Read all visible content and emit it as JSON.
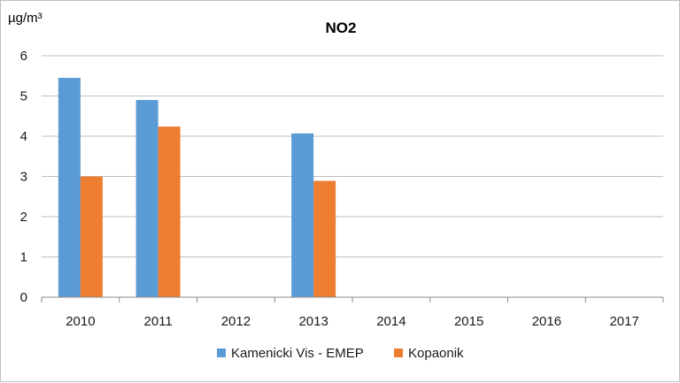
{
  "chart_data": {
    "type": "bar",
    "title": "NO2",
    "ylabel": "µg/m³",
    "xlabel": "",
    "categories": [
      "2010",
      "2011",
      "2012",
      "2013",
      "2014",
      "2015",
      "2016",
      "2017"
    ],
    "series": [
      {
        "name": "Kamenicki Vis - EMEP",
        "color": "#5b9bd5",
        "values": [
          5.45,
          4.9,
          null,
          4.07,
          null,
          null,
          null,
          null
        ]
      },
      {
        "name": "Kopaonik",
        "color": "#ed7d31",
        "values": [
          3.0,
          4.24,
          null,
          2.89,
          null,
          null,
          null,
          null
        ]
      }
    ],
    "ylim": [
      0,
      6
    ],
    "yticks": [
      "0",
      "1",
      "2",
      "3",
      "4",
      "5",
      "6"
    ],
    "grid": true,
    "legend": "bottom"
  }
}
